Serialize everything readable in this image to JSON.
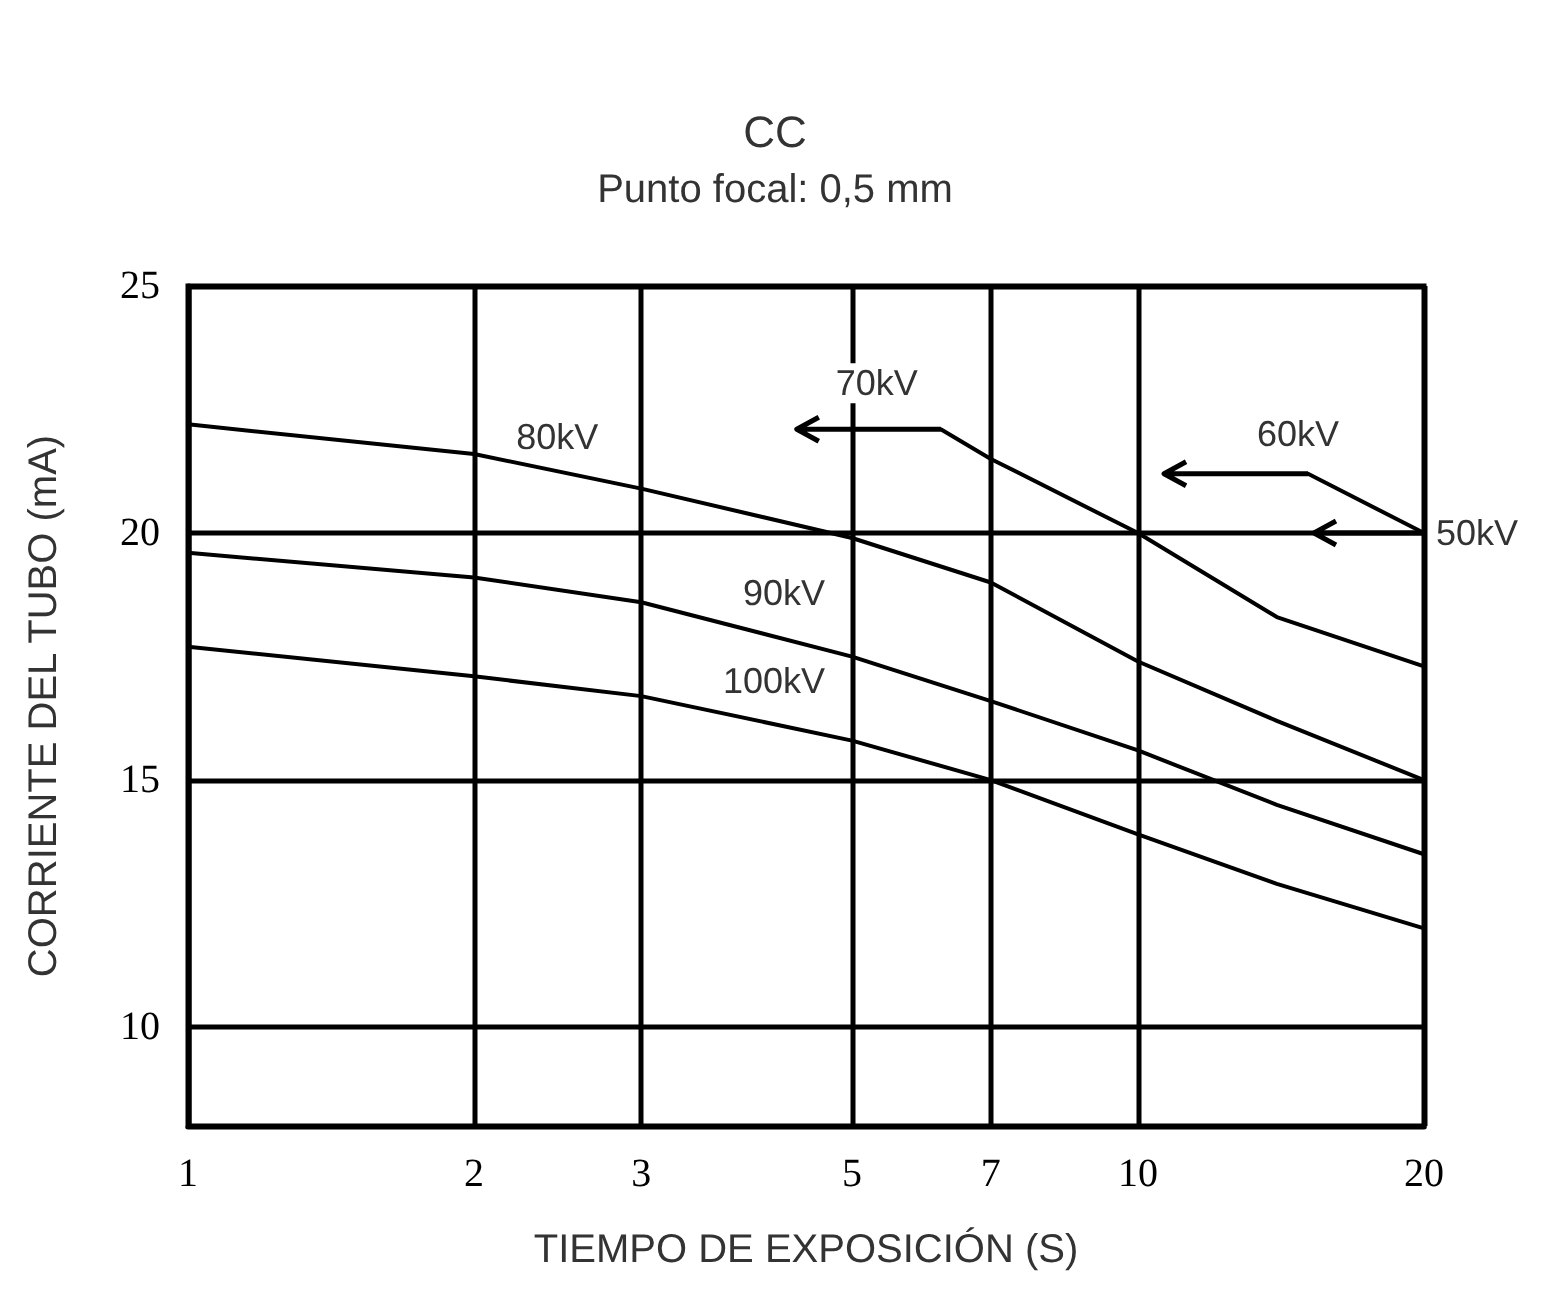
{
  "chart_data": {
    "type": "line",
    "title": "CC",
    "subtitle": "Punto focal: 0,5 mm",
    "xlabel": "TIEMPO DE EXPOSICIÓN (S)",
    "ylabel": "CORRIENTE DEL TUBO (mA)",
    "log": "x",
    "xlim": [
      1,
      20
    ],
    "xticks": [
      1,
      2,
      3,
      5,
      7,
      10,
      20
    ],
    "ylim": [
      8,
      25
    ],
    "yticks": [
      10,
      15,
      20,
      25
    ],
    "grid": true,
    "legend": false,
    "marker": "none",
    "line_style": "solid",
    "annotations": [
      {
        "text": "50kV",
        "x": 20,
        "y": 20
      }
    ],
    "series": [
      {
        "name": "60kV",
        "color": "#000000",
        "x": [
          15.1,
          20
        ],
        "values": [
          21.2,
          20
        ]
      },
      {
        "name": "70kV",
        "color": "#000000",
        "x": [
          6.2,
          7,
          10,
          14,
          20
        ],
        "values": [
          22.1,
          21.5,
          20,
          18.3,
          17.3
        ]
      },
      {
        "name": "80kV",
        "color": "#000000",
        "x": [
          1,
          2,
          3,
          5,
          7,
          10,
          14,
          20
        ],
        "values": [
          22.2,
          21.6,
          20.9,
          19.9,
          19,
          17.4,
          16.2,
          15
        ]
      },
      {
        "name": "90kV",
        "color": "#000000",
        "x": [
          1,
          2,
          3,
          5,
          7,
          10,
          14,
          20
        ],
        "values": [
          19.6,
          19.1,
          18.6,
          17.5,
          16.6,
          15.6,
          14.5,
          13.5
        ]
      },
      {
        "name": "100kV",
        "color": "#000000",
        "x": [
          1,
          2,
          3,
          5,
          7,
          10,
          14,
          20
        ],
        "values": [
          17.7,
          17.1,
          16.7,
          15.8,
          15,
          13.9,
          12.9,
          12
        ]
      }
    ]
  }
}
